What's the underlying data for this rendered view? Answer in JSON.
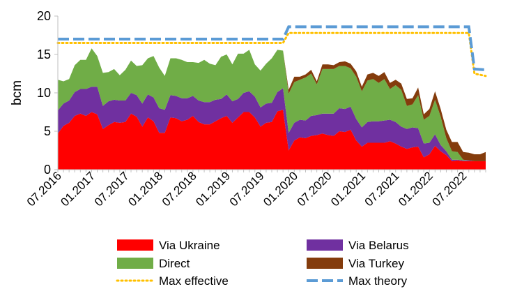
{
  "chart_data": {
    "type": "area",
    "ylabel": "bcm",
    "ylim": [
      0,
      20
    ],
    "yticks": [
      0,
      5,
      10,
      15,
      20
    ],
    "grid": false,
    "legend_position": "bottom",
    "x_tick_labels": [
      "07.2016",
      "01.2017",
      "07.2017",
      "01.2018",
      "07.2018",
      "01.2019",
      "07.2019",
      "01.2020",
      "07.2020",
      "01.2021",
      "07.2021",
      "01.2022",
      "07.2022"
    ],
    "x_start": "07.2016",
    "stacked_series": [
      {
        "name": "Via Ukraine",
        "color": "#FF0000",
        "values": [
          4.7,
          5.7,
          6.1,
          7.0,
          7.3,
          7.0,
          7.5,
          7.2,
          5.3,
          5.8,
          6.2,
          6.1,
          6.2,
          7.3,
          6.9,
          5.6,
          6.8,
          6.3,
          4.8,
          4.8,
          6.8,
          6.7,
          6.3,
          6.5,
          7.0,
          6.2,
          5.9,
          5.9,
          6.3,
          6.7,
          7.0,
          6.1,
          6.8,
          7.5,
          7.5,
          6.8,
          5.6,
          6.1,
          6.2,
          7.6,
          7.8,
          2.5,
          3.8,
          4.2,
          4.1,
          4.4,
          4.5,
          4.7,
          4.5,
          4.4,
          5.0,
          4.9,
          5.2,
          3.8,
          3.0,
          3.5,
          3.5,
          3.5,
          3.5,
          3.7,
          3.4,
          3.0,
          2.7,
          2.9,
          3.0,
          1.6,
          2.0,
          3.1,
          2.4,
          1.9,
          1.1,
          1.2,
          1.1,
          1.1,
          1.1,
          1.1,
          1.1
        ]
      },
      {
        "name": "Via Belarus",
        "color": "#7030A0",
        "values": [
          3.0,
          2.9,
          2.9,
          3.1,
          3.2,
          3.5,
          3.3,
          3.6,
          3.0,
          3.1,
          2.9,
          2.9,
          2.8,
          2.7,
          2.8,
          3.0,
          3.0,
          3.1,
          3.2,
          3.0,
          2.9,
          2.9,
          3.0,
          2.8,
          2.6,
          2.8,
          2.9,
          2.9,
          2.8,
          2.5,
          2.8,
          2.8,
          2.4,
          2.5,
          2.7,
          2.7,
          2.5,
          2.5,
          2.5,
          2.5,
          2.8,
          2.3,
          2.3,
          2.3,
          2.3,
          2.6,
          2.6,
          2.6,
          2.8,
          2.9,
          3.0,
          3.0,
          3.0,
          2.8,
          2.5,
          2.7,
          2.8,
          2.8,
          2.9,
          2.8,
          2.8,
          2.6,
          2.6,
          2.6,
          2.4,
          1.8,
          1.5,
          1.5,
          0.8,
          0.5,
          0.2,
          0.1,
          0.1,
          0.1,
          0.0,
          0.0,
          0.0
        ]
      },
      {
        "name": "Direct",
        "color": "#70AD47",
        "values": [
          4.0,
          2.9,
          2.8,
          3.5,
          3.8,
          3.8,
          5.0,
          4.0,
          4.3,
          3.8,
          4.0,
          3.3,
          4.0,
          4.2,
          3.8,
          5.0,
          4.7,
          5.4,
          5.3,
          4.4,
          4.8,
          4.9,
          5.0,
          4.7,
          4.4,
          4.9,
          5.5,
          5.0,
          4.5,
          5.5,
          5.2,
          4.8,
          5.9,
          5.1,
          5.4,
          4.2,
          4.8,
          5.2,
          5.8,
          5.5,
          4.9,
          5.1,
          5.3,
          5.2,
          5.6,
          5.5,
          4.0,
          5.8,
          5.8,
          5.8,
          5.5,
          5.6,
          5.0,
          5.5,
          4.7,
          5.4,
          5.5,
          5.0,
          5.4,
          4.0,
          4.8,
          4.8,
          3.0,
          3.0,
          4.3,
          3.1,
          3.5,
          4.5,
          3.7,
          1.7,
          1.1,
          1.0,
          0.1,
          0.0,
          0.0,
          0.0,
          0.0
        ]
      },
      {
        "name": "Via Turkey",
        "color": "#843C0C",
        "values": [
          0,
          0,
          0,
          0,
          0,
          0,
          0,
          0,
          0,
          0,
          0,
          0,
          0,
          0,
          0,
          0,
          0,
          0,
          0,
          0,
          0,
          0,
          0,
          0,
          0,
          0,
          0,
          0,
          0,
          0,
          0,
          0,
          0,
          0,
          0,
          0,
          0,
          0,
          0,
          0,
          0,
          0.5,
          0.7,
          0.4,
          0.4,
          0.5,
          0.4,
          0.6,
          0.6,
          0.5,
          0.5,
          0.6,
          0.6,
          0.7,
          0.6,
          0.8,
          0.8,
          0.9,
          0.9,
          0.8,
          0.7,
          0.8,
          0.9,
          0.8,
          1.0,
          0.7,
          0.9,
          1.1,
          1.0,
          1.1,
          1.2,
          1.3,
          1.0,
          1.0,
          0.9,
          0.9,
          1.2
        ]
      }
    ],
    "line_series": [
      {
        "name": "Max effective",
        "color": "#FFC000",
        "style": "dotted",
        "x": [
          0,
          40,
          41,
          73,
          74,
          76
        ],
        "values": [
          16.5,
          16.5,
          17.8,
          17.8,
          12.5,
          12.2
        ]
      },
      {
        "name": "Max theory",
        "color": "#5B9BD5",
        "style": "dashed",
        "x": [
          0,
          40,
          41,
          73,
          74,
          76
        ],
        "values": [
          17.0,
          17.0,
          18.6,
          18.6,
          13.1,
          13.0
        ]
      }
    ]
  }
}
